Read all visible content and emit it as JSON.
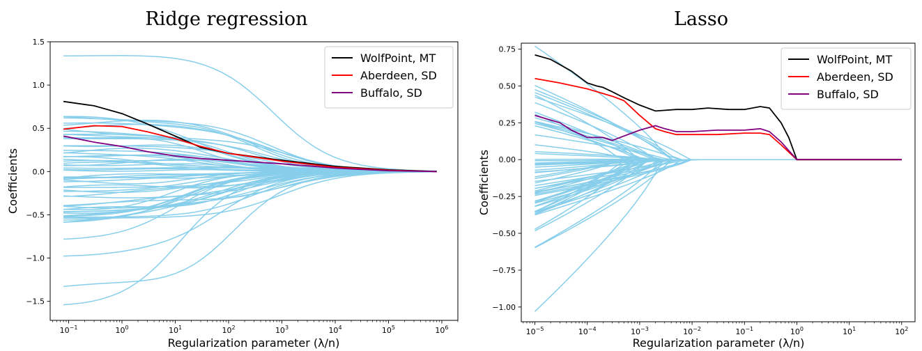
{
  "chart_data": [
    {
      "type": "line",
      "title": "Ridge regression",
      "xlabel": "Regularization parameter (λ/n)",
      "ylabel": "Coefficients",
      "xscale": "log",
      "xlim": [
        0.045,
        2000000
      ],
      "ylim": [
        -1.72,
        1.5
      ],
      "x_ticks": [
        {
          "base": "10",
          "exp": "−1",
          "value": 0.1
        },
        {
          "base": "10",
          "exp": "0",
          "value": 1
        },
        {
          "base": "10",
          "exp": "1",
          "value": 10
        },
        {
          "base": "10",
          "exp": "2",
          "value": 100
        },
        {
          "base": "10",
          "exp": "3",
          "value": 1000
        },
        {
          "base": "10",
          "exp": "4",
          "value": 10000
        },
        {
          "base": "10",
          "exp": "5",
          "value": 100000
        },
        {
          "base": "10",
          "exp": "6",
          "value": 1000000
        }
      ],
      "y_ticks": [
        {
          "label": "1.5",
          "value": 1.5
        },
        {
          "label": "1.0",
          "value": 1.0
        },
        {
          "label": "0.5",
          "value": 0.5
        },
        {
          "label": "0.0",
          "value": 0.0
        },
        {
          "label": "−0.5",
          "value": -0.5
        },
        {
          "label": "−1.0",
          "value": -1.0
        },
        {
          "label": "−1.5",
          "value": -1.5
        }
      ],
      "legend_position": "top-right",
      "grid": false,
      "background_series": {
        "color": "#87ceeb",
        "count": 60,
        "lambda_start": 0.08,
        "lambda_end": 800000
      },
      "series": [
        {
          "name": "WolfPoint, MT",
          "color": "#000000",
          "x": [
            0.08,
            0.3,
            1,
            3,
            10,
            30,
            100,
            1000,
            10000,
            100000,
            800000
          ],
          "y": [
            0.81,
            0.76,
            0.67,
            0.55,
            0.41,
            0.28,
            0.21,
            0.13,
            0.06,
            0.02,
            0.0
          ]
        },
        {
          "name": "Aberdeen, SD",
          "color": "#ff0000",
          "x": [
            0.08,
            0.3,
            1,
            3,
            10,
            30,
            100,
            1000,
            10000,
            100000,
            800000
          ],
          "y": [
            0.49,
            0.53,
            0.52,
            0.46,
            0.38,
            0.29,
            0.21,
            0.12,
            0.05,
            0.015,
            0.0
          ]
        },
        {
          "name": "Buffalo, SD",
          "color": "#800080",
          "x": [
            0.08,
            0.3,
            1,
            3,
            10,
            30,
            100,
            1000,
            10000,
            100000,
            800000
          ],
          "y": [
            0.41,
            0.34,
            0.29,
            0.23,
            0.18,
            0.15,
            0.13,
            0.09,
            0.04,
            0.01,
            0.0
          ]
        }
      ]
    },
    {
      "type": "line",
      "title": "Lasso",
      "xlabel": "Regularization parameter (λ/n)",
      "ylabel": "Coefficients",
      "xscale": "log",
      "xlim": [
        5.5e-06,
        180
      ],
      "ylim": [
        -1.1,
        0.79
      ],
      "x_ticks": [
        {
          "base": "10",
          "exp": "−5",
          "value": 1e-05
        },
        {
          "base": "10",
          "exp": "−4",
          "value": 0.0001
        },
        {
          "base": "10",
          "exp": "−3",
          "value": 0.001
        },
        {
          "base": "10",
          "exp": "−2",
          "value": 0.01
        },
        {
          "base": "10",
          "exp": "−1",
          "value": 0.1
        },
        {
          "base": "10",
          "exp": "0",
          "value": 1
        },
        {
          "base": "10",
          "exp": "1",
          "value": 10
        },
        {
          "base": "10",
          "exp": "2",
          "value": 100
        }
      ],
      "y_ticks": [
        {
          "label": "0.75",
          "value": 0.75
        },
        {
          "label": "0.50",
          "value": 0.5
        },
        {
          "label": "0.25",
          "value": 0.25
        },
        {
          "label": "0.00",
          "value": 0.0
        },
        {
          "label": "−0.25",
          "value": -0.25
        },
        {
          "label": "−0.50",
          "value": -0.5
        },
        {
          "label": "−0.75",
          "value": -0.75
        },
        {
          "label": "−1.00",
          "value": -1.0
        }
      ],
      "legend_position": "top-right",
      "grid": false,
      "background_series": {
        "color": "#87ceeb",
        "count": 60,
        "lambda_start": 1e-05,
        "lambda_end": 100
      },
      "series": [
        {
          "name": "WolfPoint, MT",
          "color": "#000000",
          "x": [
            1e-05,
            2e-05,
            5e-05,
            0.0001,
            0.00015,
            0.0002,
            0.0003,
            0.0005,
            0.001,
            0.002,
            0.005,
            0.01,
            0.02,
            0.05,
            0.1,
            0.2,
            0.3,
            0.5,
            0.7,
            1,
            100
          ],
          "y": [
            0.71,
            0.68,
            0.6,
            0.52,
            0.5,
            0.49,
            0.46,
            0.42,
            0.37,
            0.33,
            0.34,
            0.34,
            0.35,
            0.34,
            0.34,
            0.36,
            0.35,
            0.25,
            0.15,
            0.0,
            0.0
          ]
        },
        {
          "name": "Aberdeen, SD",
          "color": "#ff0000",
          "x": [
            1e-05,
            3e-05,
            0.0001,
            0.0003,
            0.0005,
            0.001,
            0.002,
            0.003,
            0.005,
            0.01,
            0.03,
            0.1,
            0.2,
            0.3,
            0.5,
            1,
            100
          ],
          "y": [
            0.55,
            0.52,
            0.48,
            0.43,
            0.4,
            0.3,
            0.21,
            0.19,
            0.17,
            0.17,
            0.17,
            0.18,
            0.18,
            0.17,
            0.1,
            0.0,
            0.0
          ]
        },
        {
          "name": "Buffalo, SD",
          "color": "#800080",
          "x": [
            1e-05,
            3e-05,
            5e-05,
            0.0001,
            0.0002,
            0.0003,
            0.0005,
            0.001,
            0.002,
            0.003,
            0.005,
            0.01,
            0.03,
            0.1,
            0.2,
            0.3,
            0.5,
            1,
            100
          ],
          "y": [
            0.3,
            0.25,
            0.2,
            0.15,
            0.15,
            0.13,
            0.16,
            0.2,
            0.23,
            0.21,
            0.19,
            0.19,
            0.2,
            0.2,
            0.21,
            0.19,
            0.12,
            0.0,
            0.0
          ]
        }
      ]
    }
  ]
}
